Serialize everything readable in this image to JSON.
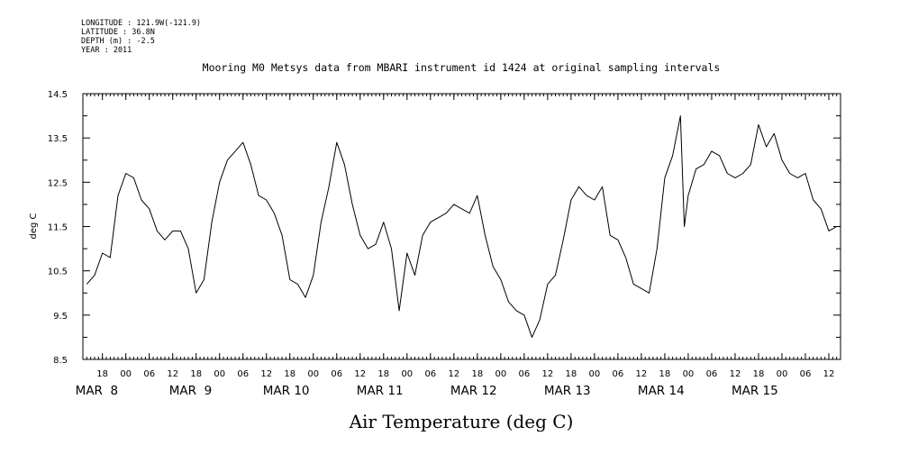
{
  "header": {
    "longitude": "LONGITUDE : 121.9W(-121.9)",
    "latitude": "LATITUDE : 36.8N",
    "depth": "DEPTH (m) : -2.5",
    "year": "YEAR : 2011"
  },
  "chart_data": {
    "type": "line",
    "title": "Mooring M0 Metsys data from MBARI instrument id 1424 at original sampling intervals",
    "xlabel": "Air Temperature (deg C)",
    "ylabel": "deg C",
    "ylim": [
      8.5,
      14.5
    ],
    "yticks": [
      "8.5",
      "9.5",
      "10.5",
      "11.5",
      "12.5",
      "13.5",
      "14.5"
    ],
    "xlim": [
      "2011-03-07T13:00",
      "2011-03-15T15:00"
    ],
    "hour_ticks": [
      "18",
      "00",
      "06",
      "12",
      "18",
      "00",
      "06",
      "12",
      "18",
      "00",
      "06",
      "12",
      "18",
      "00",
      "06",
      "12",
      "18",
      "00",
      "06",
      "12",
      "18",
      "00",
      "06",
      "12",
      "18",
      "00",
      "06",
      "12",
      "18",
      "00",
      "06",
      "12"
    ],
    "day_labels": [
      "MAR  8",
      "MAR  9",
      "MAR 10",
      "MAR 11",
      "MAR 12",
      "MAR 13",
      "MAR 14",
      "MAR 15"
    ],
    "grid": false,
    "series": [
      {
        "color": "#000000",
        "x": [
          "2011-03-07T14:00",
          "2011-03-07T16:00",
          "2011-03-07T18:00",
          "2011-03-07T20:00",
          "2011-03-07T22:00",
          "2011-03-08T00:00",
          "2011-03-08T02:00",
          "2011-03-08T04:00",
          "2011-03-08T06:00",
          "2011-03-08T08:00",
          "2011-03-08T10:00",
          "2011-03-08T12:00",
          "2011-03-08T14:00",
          "2011-03-08T16:00",
          "2011-03-08T18:00",
          "2011-03-08T20:00",
          "2011-03-08T22:00",
          "2011-03-09T00:00",
          "2011-03-09T02:00",
          "2011-03-09T04:00",
          "2011-03-09T06:00",
          "2011-03-09T08:00",
          "2011-03-09T10:00",
          "2011-03-09T12:00",
          "2011-03-09T14:00",
          "2011-03-09T16:00",
          "2011-03-09T18:00",
          "2011-03-09T20:00",
          "2011-03-09T22:00",
          "2011-03-10T00:00",
          "2011-03-10T02:00",
          "2011-03-10T04:00",
          "2011-03-10T06:00",
          "2011-03-10T08:00",
          "2011-03-10T10:00",
          "2011-03-10T12:00",
          "2011-03-10T14:00",
          "2011-03-10T16:00",
          "2011-03-10T18:00",
          "2011-03-10T20:00",
          "2011-03-10T22:00",
          "2011-03-11T00:00",
          "2011-03-11T02:00",
          "2011-03-11T04:00",
          "2011-03-11T06:00",
          "2011-03-11T08:00",
          "2011-03-11T10:00",
          "2011-03-11T12:00",
          "2011-03-11T14:00",
          "2011-03-11T16:00",
          "2011-03-11T18:00",
          "2011-03-11T20:00",
          "2011-03-11T22:00",
          "2011-03-12T00:00",
          "2011-03-12T02:00",
          "2011-03-12T04:00",
          "2011-03-12T06:00",
          "2011-03-12T08:00",
          "2011-03-12T10:00",
          "2011-03-12T12:00",
          "2011-03-12T14:00",
          "2011-03-12T16:00",
          "2011-03-12T18:00",
          "2011-03-12T20:00",
          "2011-03-12T22:00",
          "2011-03-13T00:00",
          "2011-03-13T02:00",
          "2011-03-13T04:00",
          "2011-03-13T06:00",
          "2011-03-13T08:00",
          "2011-03-13T10:00",
          "2011-03-13T12:00",
          "2011-03-13T14:00",
          "2011-03-13T16:00",
          "2011-03-13T18:00",
          "2011-03-13T20:00",
          "2011-03-13T22:00",
          "2011-03-13T23:00",
          "2011-03-14T00:00",
          "2011-03-14T02:00",
          "2011-03-14T04:00",
          "2011-03-14T06:00",
          "2011-03-14T08:00",
          "2011-03-14T10:00",
          "2011-03-14T12:00",
          "2011-03-14T14:00",
          "2011-03-14T16:00",
          "2011-03-14T18:00",
          "2011-03-14T20:00",
          "2011-03-14T22:00",
          "2011-03-15T00:00",
          "2011-03-15T02:00",
          "2011-03-15T04:00",
          "2011-03-15T06:00",
          "2011-03-15T08:00",
          "2011-03-15T10:00",
          "2011-03-15T12:00",
          "2011-03-15T14:00"
        ],
        "y": [
          10.2,
          10.4,
          10.9,
          10.8,
          12.2,
          12.7,
          12.6,
          12.1,
          11.9,
          11.4,
          11.2,
          11.4,
          11.4,
          11.0,
          10.0,
          10.3,
          11.6,
          12.5,
          13.0,
          13.2,
          13.4,
          12.9,
          12.2,
          12.1,
          11.8,
          11.3,
          10.3,
          10.2,
          9.9,
          10.4,
          11.6,
          12.4,
          13.4,
          12.9,
          12.0,
          11.3,
          11.0,
          11.1,
          11.6,
          11.0,
          9.6,
          10.9,
          10.4,
          11.3,
          11.6,
          11.7,
          11.8,
          12.0,
          11.9,
          11.8,
          12.2,
          11.3,
          10.6,
          10.3,
          9.8,
          9.6,
          9.5,
          9.0,
          9.4,
          10.2,
          10.4,
          11.2,
          12.1,
          12.4,
          12.2,
          12.1,
          12.4,
          11.3,
          11.2,
          10.8,
          10.2,
          10.1,
          10.0,
          11.0,
          12.6,
          13.1,
          14.0,
          11.5,
          12.2,
          12.8,
          12.9,
          13.2,
          13.1,
          12.7,
          12.6,
          12.7,
          12.9,
          13.8,
          13.3,
          13.6,
          13.0,
          12.7,
          12.6,
          12.7,
          12.1,
          11.9,
          11.4,
          11.5
        ]
      }
    ]
  }
}
